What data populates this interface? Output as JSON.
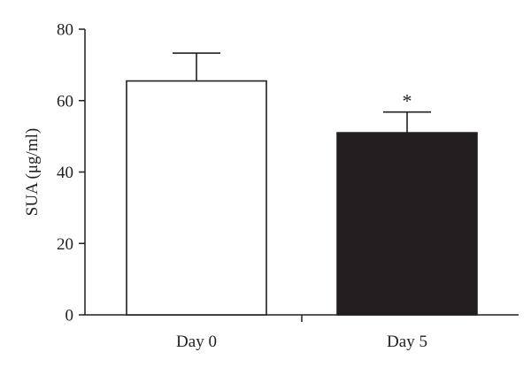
{
  "chart_data": {
    "type": "bar",
    "title": "",
    "xlabel": "",
    "ylabel": "SUA (μg/ml)",
    "ylim": [
      0,
      80
    ],
    "yticks": [
      0,
      20,
      40,
      60,
      80
    ],
    "categories": [
      "Day 0",
      "Day 5"
    ],
    "values": [
      65.5,
      51
    ],
    "errors": [
      7.8,
      5.8
    ],
    "bar_fill": [
      "#ffffff",
      "#231f20"
    ],
    "annotations": [
      "",
      "*"
    ],
    "grid": false,
    "legend": "none"
  }
}
